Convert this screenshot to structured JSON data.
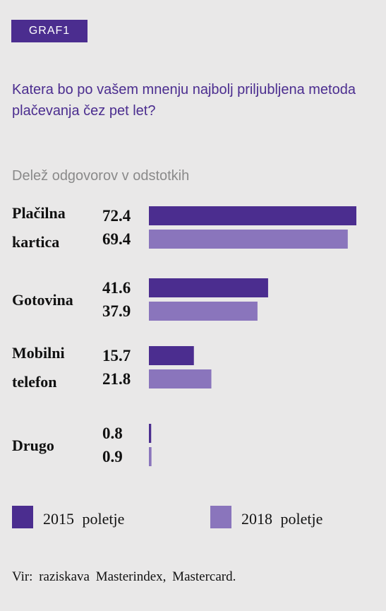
{
  "badge": "GRAF1",
  "title": "Katera bo po vašem mnenju najbolj priljubljena metoda plačevanja čez pet let?",
  "subtitle": "Delež odgovorov v odstotkih",
  "colors": {
    "s2015": "#4b2d8f",
    "s2018": "#8a75bc",
    "badge": "#4b2d8f"
  },
  "legend": {
    "s2015": "2015 poletje",
    "s2018": "2018 poletje"
  },
  "source": "Vir: raziskava Masterindex, Mastercard.",
  "chart_data": {
    "type": "bar",
    "orientation": "horizontal",
    "categories": [
      {
        "lines": [
          "Plačilna",
          "kartica"
        ]
      },
      {
        "lines": [
          "Gotovina"
        ]
      },
      {
        "lines": [
          "Mobilni",
          "telefon"
        ]
      },
      {
        "lines": [
          "Drugo"
        ]
      }
    ],
    "series": [
      {
        "name": "2015 poletje",
        "values": [
          72.4,
          41.6,
          15.7,
          0.8
        ],
        "value_labels": [
          "72.4",
          "41.6",
          "15.7",
          "0.8"
        ]
      },
      {
        "name": "2018 poletje",
        "values": [
          69.4,
          37.9,
          21.8,
          0.9
        ],
        "value_labels": [
          "69.4",
          "37.9",
          "21.8",
          "0.9"
        ]
      }
    ],
    "xlim": [
      0,
      72.4
    ],
    "grid": false,
    "legend_position": "bottom"
  }
}
